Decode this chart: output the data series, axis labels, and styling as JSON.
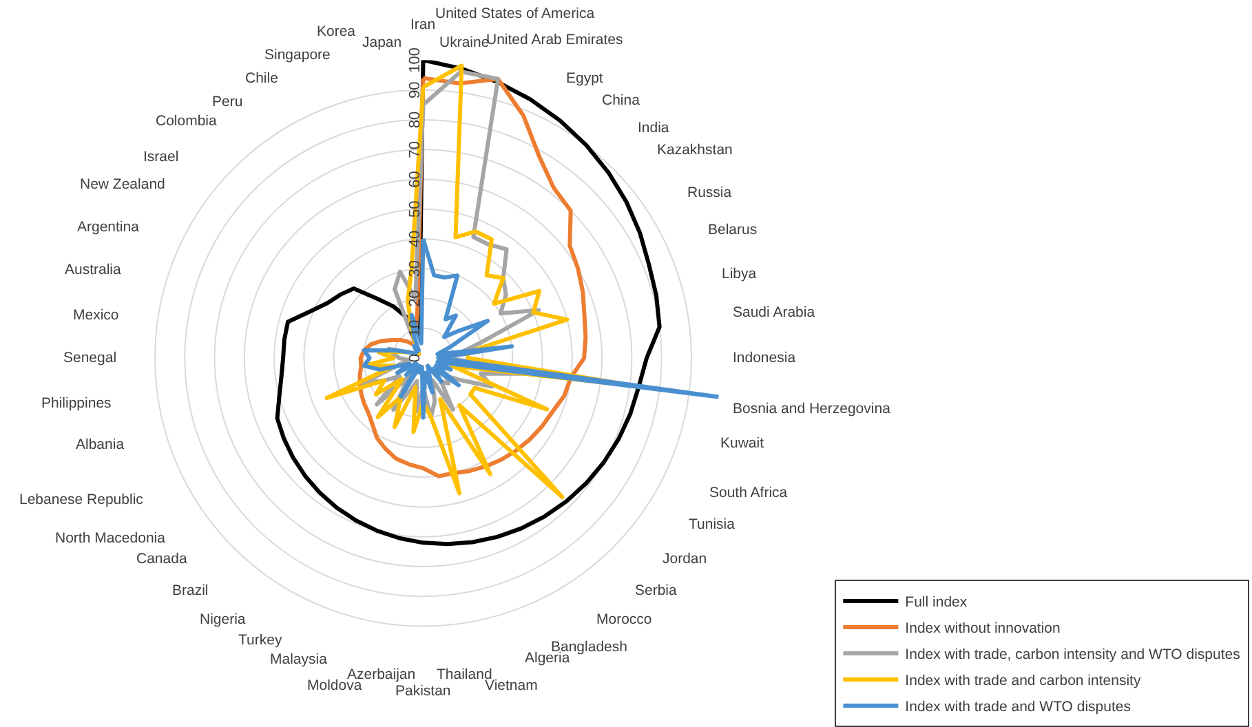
{
  "chart_data": {
    "type": "radar",
    "categories": [
      "Iran",
      "Ukraine",
      "United States of America",
      "United Arab Emirates",
      "Egypt",
      "China",
      "India",
      "Kazakhstan",
      "Russia",
      "Belarus",
      "Libya",
      "Saudi Arabia",
      "Indonesia",
      "Bosnia and Herzegovina",
      "Kuwait",
      "South Africa",
      "Tunisia",
      "Jordan",
      "Serbia",
      "Morocco",
      "Bangladesh",
      "Algeria",
      "Vietnam",
      "Thailand",
      "Pakistan",
      "Azerbaijan",
      "Moldova",
      "Malaysia",
      "Turkey",
      "Nigeria",
      "Brazil",
      "Canada",
      "North Macedonia",
      "Lebanese Republic",
      "Albania",
      "Philippines",
      "Senegal",
      "Mexico",
      "Australia",
      "Argentina",
      "New Zealand",
      "Israel",
      "Colombia",
      "Peru",
      "Chile",
      "Singapore",
      "Korea",
      "Japan"
    ],
    "series": [
      {
        "name": "Full index",
        "color": "#000000",
        "values": [
          100,
          98,
          96,
          94,
          92,
          90,
          88,
          86,
          84,
          82,
          81,
          80,
          75,
          73,
          72,
          71,
          70,
          69,
          68,
          67,
          66,
          65,
          64,
          63,
          62,
          61,
          60,
          59,
          58,
          57,
          56,
          55,
          54,
          53,
          50,
          48,
          47,
          47,
          47,
          41,
          37,
          35,
          33,
          25,
          20,
          15,
          12,
          10
        ]
      },
      {
        "name": "Index without innovation",
        "color": "#ed7d31",
        "values": [
          94,
          93,
          97,
          88,
          78,
          72,
          70,
          62,
          60,
          58,
          56,
          55,
          54,
          50,
          49,
          47,
          46,
          45,
          44,
          43,
          42,
          41,
          40,
          40,
          37,
          36,
          35,
          33,
          31,
          28,
          26,
          25,
          24,
          23,
          22,
          21,
          21,
          20,
          18,
          15,
          12,
          10,
          8,
          6,
          5,
          8,
          10,
          15
        ]
      },
      {
        "name": "Index with trade, carbon intensity and WTO disputes",
        "color": "#a5a5a5",
        "values": [
          85,
          97,
          97,
          44,
          44,
          46,
          38,
          35,
          30,
          42,
          20,
          12,
          8,
          40,
          20,
          25,
          15,
          10,
          12,
          10,
          20,
          8,
          15,
          20,
          10,
          18,
          8,
          12,
          20,
          8,
          22,
          10,
          15,
          22,
          8,
          5,
          8,
          10,
          12,
          5,
          3,
          3,
          2,
          3,
          5,
          25,
          30,
          20
        ]
      },
      {
        "name": "Index with trade and carbon intensity",
        "color": "#ffc000",
        "values": [
          91,
          99,
          42,
          46,
          46,
          35,
          38,
          30,
          45,
          40,
          50,
          15,
          15,
          72,
          10,
          45,
          20,
          20,
          66,
          20,
          45,
          15,
          47,
          20,
          15,
          25,
          10,
          25,
          15,
          25,
          10,
          20,
          15,
          35,
          10,
          20,
          10,
          15,
          8,
          5,
          3,
          3,
          2,
          3,
          5,
          10,
          20,
          30
        ]
      },
      {
        "name": "Index with trade and WTO disputes",
        "color": "#4a90d0",
        "values": [
          40,
          28,
          28,
          30,
          15,
          18,
          10,
          15,
          25,
          10,
          5,
          30,
          5,
          100,
          5,
          10,
          5,
          15,
          5,
          10,
          3,
          5,
          12,
          5,
          20,
          3,
          5,
          3,
          15,
          3,
          8,
          3,
          10,
          5,
          15,
          20,
          18,
          20,
          10,
          5,
          3,
          3,
          3,
          5,
          3,
          8,
          15,
          5
        ]
      }
    ],
    "ylim": [
      0,
      100
    ],
    "yticks": [
      0,
      10,
      20,
      30,
      40,
      50,
      60,
      70,
      80,
      90,
      100
    ],
    "grid": true,
    "legend": "bottom right",
    "marker": "none",
    "line_style": "solid"
  }
}
